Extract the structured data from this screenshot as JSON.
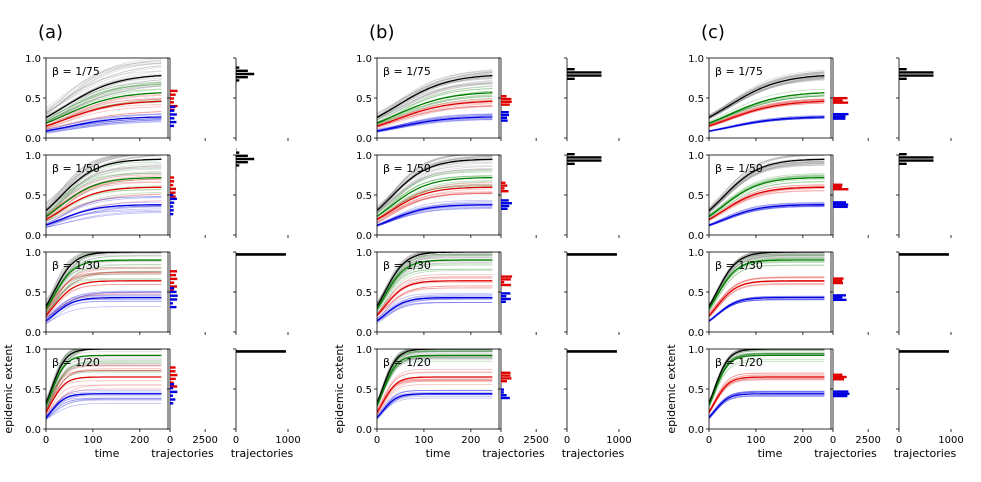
{
  "chart_data": {
    "type": "line",
    "panels": [
      {
        "label": "(a)",
        "spread": 0.55
      },
      {
        "label": "(b)",
        "spread": 0.3
      },
      {
        "label": "(c)",
        "spread": 0.16
      }
    ],
    "rows": [
      {
        "beta": "β = 1/75",
        "black": 0.8,
        "green": 0.58,
        "red": 0.47,
        "blue": 0.27,
        "rate": 0.018
      },
      {
        "beta": "β = 1/50",
        "black": 0.95,
        "green": 0.72,
        "red": 0.6,
        "blue": 0.38,
        "rate": 0.025
      },
      {
        "beta": "β = 1/30",
        "black": 1.0,
        "green": 0.9,
        "red": 0.64,
        "blue": 0.43,
        "rate": 0.045
      },
      {
        "beta": "β = 1/20",
        "black": 1.0,
        "green": 0.92,
        "red": 0.65,
        "blue": 0.44,
        "rate": 0.065
      }
    ],
    "main_axis": {
      "xlim": [
        0,
        260
      ],
      "ylim": [
        0,
        1.0
      ],
      "xticks": [
        "0",
        "100",
        "200"
      ],
      "yticks": [
        "0.0",
        "0.5",
        "1.0"
      ],
      "xlabel": "time",
      "ylabel": "epidemic extent"
    },
    "hist1_axis": {
      "xlim": [
        0,
        3200
      ],
      "xticks": [
        "0",
        "2500"
      ],
      "xlabel": "trajectories"
    },
    "hist2_axis": {
      "xlim": [
        0,
        1000
      ],
      "xticks": [
        "0",
        "1000"
      ],
      "xlabel": "trajectories"
    },
    "series_colors": {
      "black": "#000000",
      "green": "#008000",
      "red": "#e00000",
      "blue": "#0000e0",
      "gray": "#9a9a9a"
    }
  }
}
